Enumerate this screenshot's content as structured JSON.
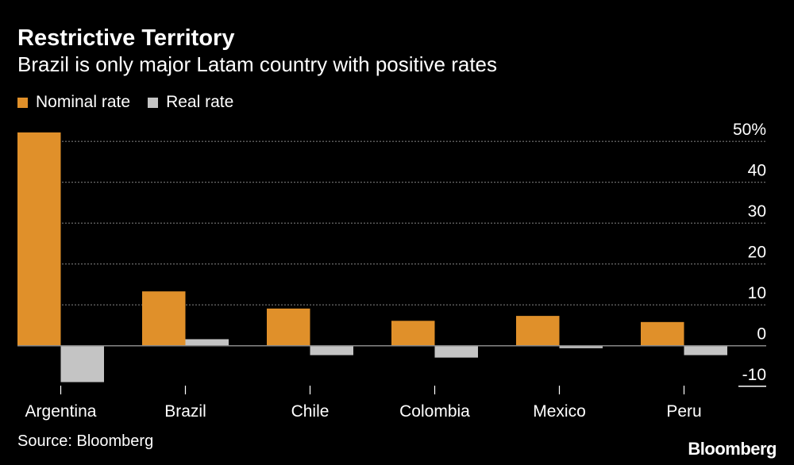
{
  "chart_data": {
    "type": "bar",
    "title": "Restrictive Territory",
    "subtitle": "Brazil is only major Latam country with positive rates",
    "categories": [
      "Argentina",
      "Brazil",
      "Chile",
      "Colombia",
      "Mexico",
      "Peru"
    ],
    "series": [
      {
        "name": "Nominal rate",
        "color": "#E0902A",
        "values": [
          52.2,
          13.3,
          9.1,
          6.1,
          7.3,
          5.8
        ]
      },
      {
        "name": "Real rate",
        "color": "#C4C4C4",
        "values": [
          -8.9,
          1.6,
          -2.3,
          -2.9,
          -0.6,
          -2.3
        ]
      }
    ],
    "ylim": [
      -10,
      50
    ],
    "yticks": [
      "50%",
      "40",
      "30",
      "20",
      "10",
      "0",
      "-10"
    ],
    "ytick_values": [
      50,
      40,
      30,
      20,
      10,
      0,
      -10
    ],
    "y_axis_position": "right",
    "grid": true,
    "legend": "top-left",
    "source": "Source: Bloomberg",
    "logo": "Bloomberg"
  }
}
